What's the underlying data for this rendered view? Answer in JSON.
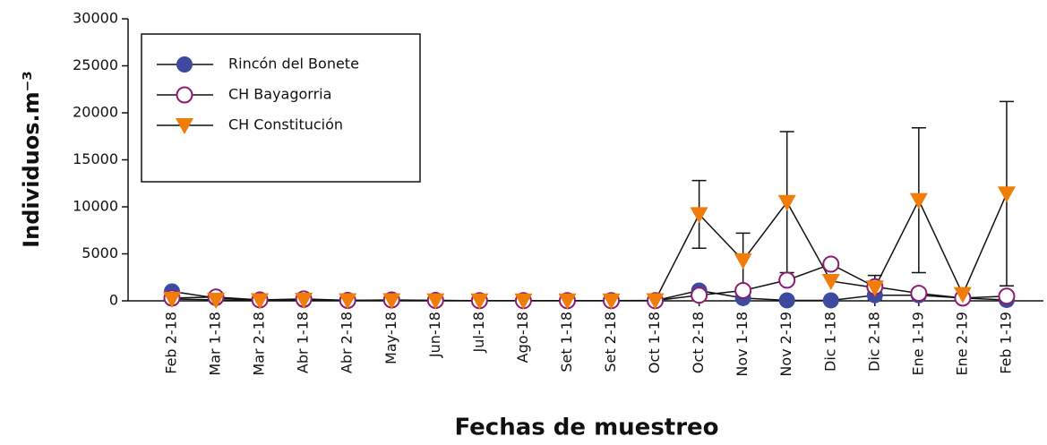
{
  "chart_data": {
    "type": "line",
    "xlabel": "Fechas de muestreo",
    "ylabel": "Individuos.m⁻³",
    "categories": [
      "Feb 2-18",
      "Mar 1-18",
      "Mar 2-18",
      "Abr 1-18",
      "Abr 2-18",
      "May-18",
      "Jun-18",
      "Jul-18",
      "Ago-18",
      "Set 1-18",
      "Set 2-18",
      "Oct 1-18",
      "Oct 2-18",
      "Nov 1-18",
      "Nov 2-19",
      "Dic 1-18",
      "Dic 2-18",
      "Ene 1-19",
      "Ene 2-19",
      "Feb 1-19"
    ],
    "series": [
      {
        "name": "Rincón del Bonete",
        "color": "#3d4a9e",
        "marker": "filled-circle",
        "values": [
          1000,
          300,
          100,
          100,
          50,
          50,
          30,
          20,
          20,
          20,
          20,
          20,
          1100,
          300,
          50,
          50,
          600,
          600,
          300,
          100
        ]
      },
      {
        "name": "CH Bayagorria",
        "color": "#8b1c6e",
        "marker": "open-circle",
        "values": [
          300,
          400,
          100,
          200,
          50,
          100,
          50,
          20,
          20,
          20,
          20,
          20,
          600,
          1100,
          2200,
          3900,
          1500,
          800,
          300,
          500
        ]
      },
      {
        "name": "CH Constitución",
        "color": "#f07c0a",
        "marker": "triangle-down",
        "values": [
          200,
          100,
          50,
          100,
          50,
          50,
          30,
          20,
          20,
          20,
          20,
          50,
          9200,
          4300,
          10500,
          2100,
          1400,
          10700,
          700,
          11400
        ],
        "errors": [
          null,
          null,
          null,
          null,
          null,
          null,
          null,
          null,
          null,
          null,
          null,
          null,
          3600,
          2900,
          7500,
          null,
          1300,
          7700,
          null,
          9800
        ]
      }
    ],
    "ylim": [
      0,
      30000
    ],
    "yticks": [
      0,
      5000,
      10000,
      15000,
      20000,
      25000,
      30000
    ],
    "legend": "upper left"
  }
}
